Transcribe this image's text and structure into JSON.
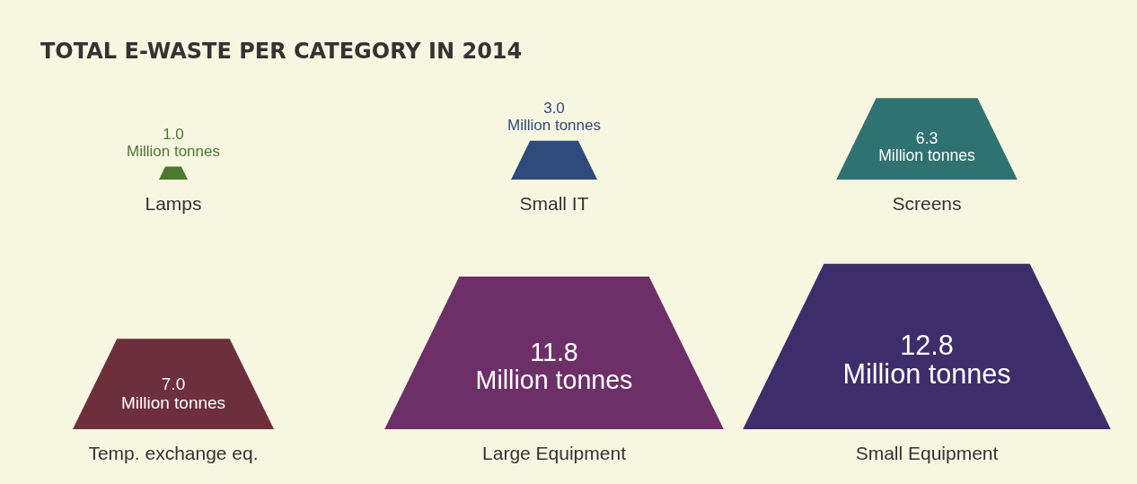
{
  "chart_data": {
    "type": "other",
    "title": "TOTAL E-WASTE PER CATEGORY IN 2014",
    "categories": [
      "Lamps",
      "Small IT",
      "Screens",
      "Temp. exchange eq.",
      "Large Equipment",
      "Small Equipment"
    ],
    "values": [
      1.0,
      3.0,
      6.3,
      7.0,
      11.8,
      12.8
    ],
    "value_labels": [
      "1.0 Million tonnes",
      "3.0 Million tonnes",
      "6.3 Million tonnes",
      "7.0 Million tonnes",
      "11.8 Million tonnes",
      "12.8 Million tonnes"
    ],
    "colors": [
      "#4a7a2c",
      "#2f4b7c",
      "#2e7271",
      "#6e2f3c",
      "#6d2f68",
      "#3e2d6b"
    ]
  }
}
